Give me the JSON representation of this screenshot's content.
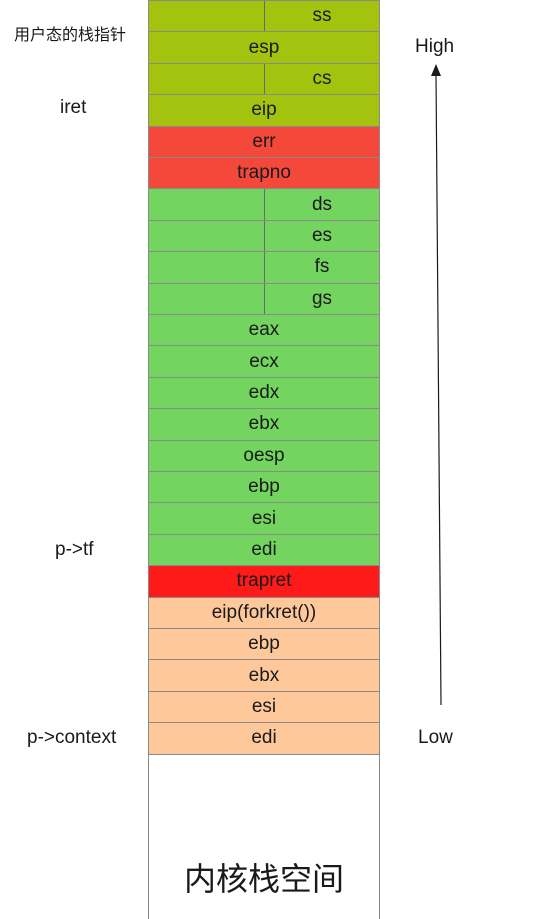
{
  "diagram": {
    "cells": [
      {
        "text": "ss",
        "color": "#a4c30f",
        "half": true
      },
      {
        "text": "esp",
        "color": "#a4c30f",
        "half": false
      },
      {
        "text": "cs",
        "color": "#a4c30f",
        "half": true
      },
      {
        "text": "eip",
        "color": "#a4c30f",
        "half": false
      },
      {
        "text": "err",
        "color": "#f4483a",
        "half": false
      },
      {
        "text": "trapno",
        "color": "#f4483a",
        "half": false
      },
      {
        "text": "ds",
        "color": "#73d460",
        "half": true
      },
      {
        "text": "es",
        "color": "#73d460",
        "half": true
      },
      {
        "text": "fs",
        "color": "#73d460",
        "half": true
      },
      {
        "text": "gs",
        "color": "#73d460",
        "half": true
      },
      {
        "text": "eax",
        "color": "#73d460",
        "half": false
      },
      {
        "text": "ecx",
        "color": "#73d460",
        "half": false
      },
      {
        "text": "edx",
        "color": "#73d460",
        "half": false
      },
      {
        "text": "ebx",
        "color": "#73d460",
        "half": false
      },
      {
        "text": "oesp",
        "color": "#73d460",
        "half": false
      },
      {
        "text": "ebp",
        "color": "#73d460",
        "half": false
      },
      {
        "text": "esi",
        "color": "#73d460",
        "half": false
      },
      {
        "text": "edi",
        "color": "#73d460",
        "half": false
      },
      {
        "text": "trapret",
        "color": "#ff1a1a",
        "half": false
      },
      {
        "text": "eip(forkret())",
        "color": "#fec89b",
        "half": false
      },
      {
        "text": "ebp",
        "color": "#fec89b",
        "half": false
      },
      {
        "text": "ebx",
        "color": "#fec89b",
        "half": false
      },
      {
        "text": "esi",
        "color": "#fec89b",
        "half": false
      },
      {
        "text": "edi",
        "color": "#fec89b",
        "half": false
      }
    ],
    "side_labels": {
      "user_stack_pointer": "用户态的栈指针",
      "iret": "iret",
      "p_tf": "p->tf",
      "p_context": "p->context"
    },
    "high_label": "High",
    "low_label": "Low",
    "kernel_space_label": "内核栈空间",
    "arrow_color": "#1a1a1a"
  }
}
